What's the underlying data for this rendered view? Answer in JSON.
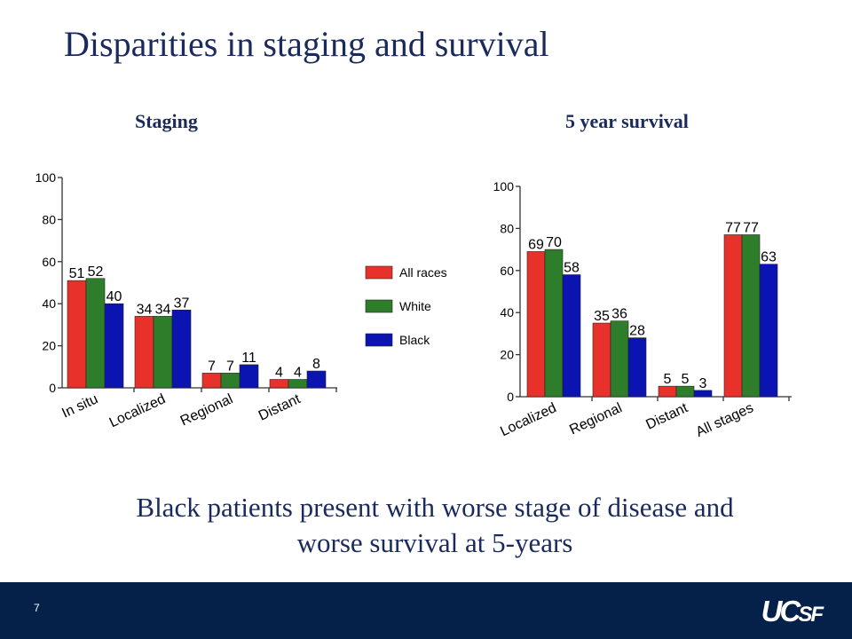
{
  "slide": {
    "title": "Disparities in staging and survival",
    "caption_line1": "Black patients present with worse stage of disease and",
    "caption_line2": "worse survival at 5-years",
    "page_number": "7",
    "logo_main": "UC",
    "logo_small": "SF"
  },
  "colors": {
    "All races": "#e8312a",
    "White": "#2e7d2a",
    "Black": "#0b14b0",
    "footer": "#052049",
    "title": "#1b2a5c"
  },
  "chart_data": [
    {
      "type": "bar",
      "title": "Staging",
      "categories": [
        "In situ",
        "Localized",
        "Regional",
        "Distant"
      ],
      "series": [
        {
          "name": "All races",
          "values": [
            51,
            34,
            7,
            4
          ]
        },
        {
          "name": "White",
          "values": [
            52,
            34,
            7,
            4
          ]
        },
        {
          "name": "Black",
          "values": [
            40,
            37,
            11,
            8
          ]
        }
      ],
      "yticks": [
        0,
        20,
        40,
        60,
        80,
        100
      ],
      "ylim": [
        0,
        100
      ],
      "legend": "right",
      "grid": false
    },
    {
      "type": "bar",
      "title": "5 year survival",
      "categories": [
        "Localized",
        "Regional",
        "Distant",
        "All stages"
      ],
      "series": [
        {
          "name": "All races",
          "values": [
            69,
            35,
            5,
            77
          ]
        },
        {
          "name": "White",
          "values": [
            70,
            36,
            5,
            77
          ]
        },
        {
          "name": "Black",
          "values": [
            58,
            28,
            3,
            63
          ]
        }
      ],
      "yticks": [
        0,
        20,
        40,
        60,
        80,
        100
      ],
      "ylim": [
        0,
        100
      ],
      "legend": "none",
      "grid": false
    }
  ]
}
